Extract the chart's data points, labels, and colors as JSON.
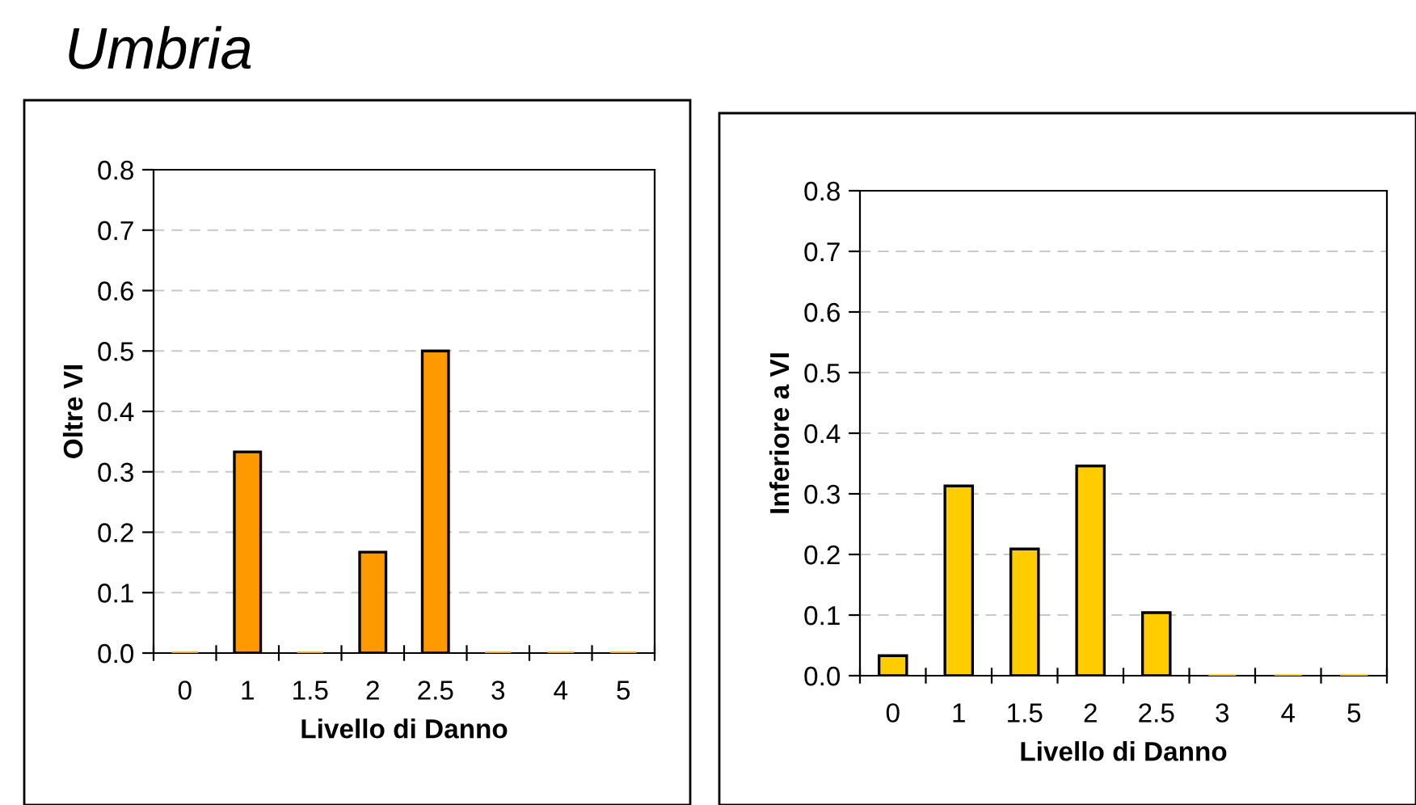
{
  "chart_data": [
    {
      "type": "bar",
      "title": "Umbria",
      "xlabel": "Livello di Danno",
      "ylabel": "Oltre VI",
      "categories": [
        "0",
        "1",
        "1.5",
        "2",
        "2.5",
        "3",
        "4",
        "5"
      ],
      "values": [
        0,
        0.333,
        0,
        0.167,
        0.5,
        0,
        0,
        0
      ],
      "color": "#ff9900",
      "ylim": [
        0,
        0.8
      ],
      "yticks": [
        {
          "value": 0,
          "label": "0.0"
        },
        0.1,
        0.2,
        0.3,
        0.4,
        0.5,
        0.6,
        0.7,
        0.8
      ],
      "grid": "y"
    },
    {
      "type": "bar",
      "xlabel": "Livello di Danno",
      "ylabel": "Inferiore a VI",
      "categories": [
        "0",
        "1",
        "1.5",
        "2",
        "2.5",
        "3",
        "4",
        "5"
      ],
      "values": [
        0.033,
        0.313,
        0.209,
        0.346,
        0.104,
        0,
        0,
        0
      ],
      "color": "#ffcc00",
      "ylim": [
        0,
        0.8
      ],
      "yticks": [
        {
          "value": 0,
          "label": "0.0"
        },
        0.1,
        0.2,
        0.3,
        0.4,
        0.5,
        0.6,
        0.7,
        0.8
      ],
      "grid": "y"
    }
  ]
}
